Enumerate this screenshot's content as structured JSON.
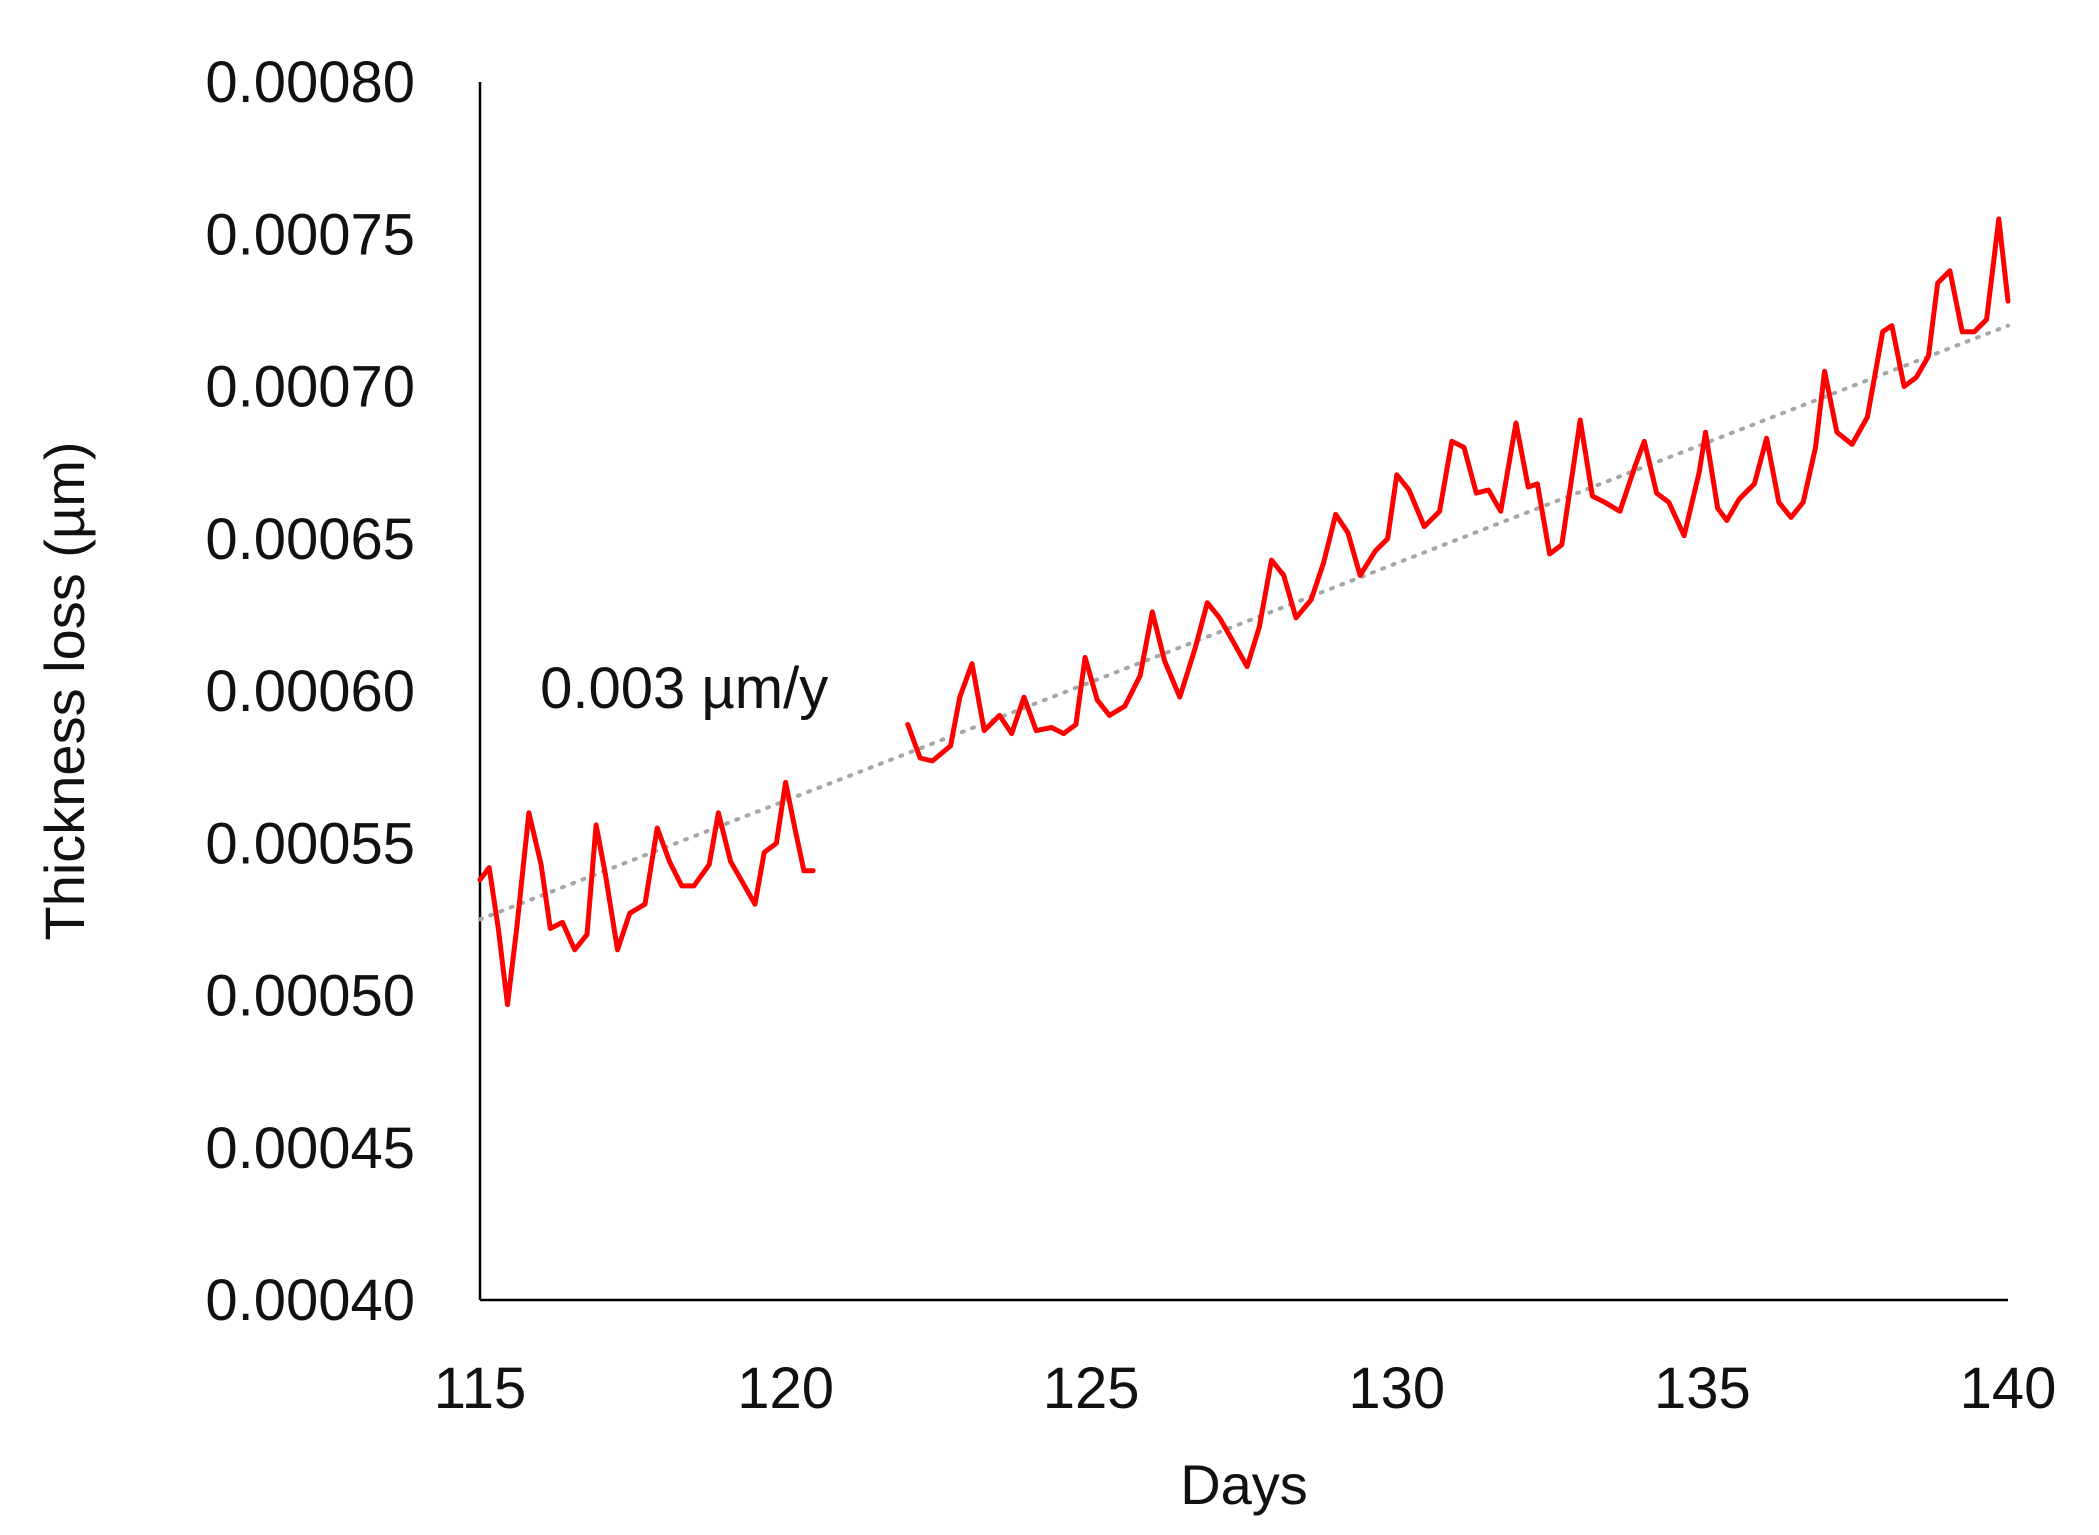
{
  "chart_data": {
    "type": "line",
    "title": "",
    "xlabel": "Days",
    "ylabel": "Thickness loss (µm)",
    "xlim": [
      115,
      140
    ],
    "ylim": [
      0.0004,
      0.0008
    ],
    "x_ticks": [
      "115",
      "120",
      "125",
      "130",
      "135",
      "140"
    ],
    "y_ticks": [
      "0.00040",
      "0.00045",
      "0.00050",
      "0.00055",
      "0.00060",
      "0.00065",
      "0.00070",
      "0.00075",
      "0.00080"
    ],
    "grid": false,
    "legend": "none",
    "annotation": {
      "text": "0.003 µm/y",
      "x": 116.0,
      "y": 0.000601
    },
    "series": [
      {
        "color": "#ff0000",
        "style": "solid",
        "segments": [
          [
            [
              115.0,
              0.000538
            ],
            [
              115.15,
              0.000542
            ],
            [
              115.3,
              0.000522
            ],
            [
              115.45,
              0.000497
            ],
            [
              115.6,
              0.000522
            ],
            [
              115.8,
              0.00056
            ],
            [
              116.0,
              0.000543
            ],
            [
              116.15,
              0.000522
            ],
            [
              116.35,
              0.000524
            ],
            [
              116.55,
              0.000515
            ],
            [
              116.75,
              0.00052
            ],
            [
              116.9,
              0.000556
            ],
            [
              117.05,
              0.00054
            ],
            [
              117.25,
              0.000515
            ],
            [
              117.45,
              0.000527
            ],
            [
              117.7,
              0.00053
            ],
            [
              117.9,
              0.000555
            ],
            [
              118.1,
              0.000544
            ],
            [
              118.3,
              0.000536
            ],
            [
              118.5,
              0.000536
            ],
            [
              118.75,
              0.000543
            ],
            [
              118.9,
              0.00056
            ],
            [
              119.1,
              0.000544
            ],
            [
              119.3,
              0.000537
            ],
            [
              119.5,
              0.00053
            ],
            [
              119.65,
              0.000547
            ],
            [
              119.85,
              0.00055
            ],
            [
              120.0,
              0.00057
            ],
            [
              120.15,
              0.000555
            ],
            [
              120.3,
              0.000541
            ],
            [
              120.45,
              0.000541
            ]
          ],
          [
            [
              122.0,
              0.000589
            ],
            [
              122.2,
              0.000578
            ],
            [
              122.4,
              0.000577
            ],
            [
              122.7,
              0.000582
            ],
            [
              122.85,
              0.000598
            ],
            [
              123.05,
              0.000609
            ],
            [
              123.25,
              0.000587
            ],
            [
              123.5,
              0.000592
            ],
            [
              123.7,
              0.000586
            ],
            [
              123.9,
              0.000598
            ],
            [
              124.1,
              0.000587
            ],
            [
              124.35,
              0.000588
            ],
            [
              124.55,
              0.000586
            ],
            [
              124.75,
              0.000589
            ],
            [
              124.9,
              0.000611
            ],
            [
              125.1,
              0.000597
            ],
            [
              125.3,
              0.000592
            ],
            [
              125.55,
              0.000595
            ],
            [
              125.8,
              0.000605
            ],
            [
              126.0,
              0.000626
            ],
            [
              126.2,
              0.00061
            ],
            [
              126.45,
              0.000598
            ],
            [
              126.7,
              0.000614
            ],
            [
              126.9,
              0.000629
            ],
            [
              127.1,
              0.000624
            ],
            [
              127.3,
              0.000617
            ],
            [
              127.55,
              0.000608
            ],
            [
              127.75,
              0.000621
            ],
            [
              127.95,
              0.000643
            ],
            [
              128.15,
              0.000638
            ],
            [
              128.35,
              0.000624
            ],
            [
              128.6,
              0.00063
            ],
            [
              128.8,
              0.000642
            ],
            [
              129.0,
              0.000658
            ],
            [
              129.2,
              0.000652
            ],
            [
              129.4,
              0.000638
            ],
            [
              129.65,
              0.000646
            ],
            [
              129.85,
              0.00065
            ],
            [
              130.0,
              0.000671
            ],
            [
              130.2,
              0.000666
            ],
            [
              130.45,
              0.000654
            ],
            [
              130.7,
              0.000659
            ],
            [
              130.9,
              0.000682
            ],
            [
              131.1,
              0.00068
            ],
            [
              131.3,
              0.000665
            ],
            [
              131.5,
              0.000666
            ],
            [
              131.7,
              0.000659
            ],
            [
              131.95,
              0.000688
            ],
            [
              132.15,
              0.000667
            ],
            [
              132.3,
              0.000668
            ],
            [
              132.5,
              0.000645
            ],
            [
              132.7,
              0.000648
            ],
            [
              132.9,
              0.000675
            ],
            [
              133.0,
              0.000689
            ],
            [
              133.2,
              0.000664
            ],
            [
              133.4,
              0.000662
            ],
            [
              133.65,
              0.000659
            ],
            [
              133.9,
              0.000674
            ],
            [
              134.05,
              0.000682
            ],
            [
              134.25,
              0.000665
            ],
            [
              134.45,
              0.000662
            ],
            [
              134.7,
              0.000651
            ],
            [
              134.95,
              0.000672
            ],
            [
              135.05,
              0.000685
            ],
            [
              135.25,
              0.00066
            ],
            [
              135.4,
              0.000656
            ],
            [
              135.6,
              0.000663
            ],
            [
              135.85,
              0.000668
            ],
            [
              136.05,
              0.000683
            ],
            [
              136.25,
              0.000662
            ],
            [
              136.45,
              0.000657
            ],
            [
              136.65,
              0.000662
            ],
            [
              136.85,
              0.00068
            ],
            [
              137.0,
              0.000705
            ],
            [
              137.2,
              0.000685
            ],
            [
              137.45,
              0.000681
            ],
            [
              137.7,
              0.00069
            ],
            [
              137.95,
              0.000718
            ],
            [
              138.1,
              0.00072
            ],
            [
              138.3,
              0.0007
            ],
            [
              138.5,
              0.000703
            ],
            [
              138.7,
              0.00071
            ],
            [
              138.85,
              0.000734
            ],
            [
              139.05,
              0.000738
            ],
            [
              139.25,
              0.000718
            ],
            [
              139.45,
              0.000718
            ],
            [
              139.65,
              0.000722
            ],
            [
              139.85,
              0.000755
            ],
            [
              140.0,
              0.000728
            ]
          ]
        ]
      },
      {
        "color": "#a6a6a6",
        "style": "dotted",
        "type": "trendline",
        "points": [
          [
            115.0,
            0.000525
          ],
          [
            140.0,
            0.00072
          ]
        ]
      }
    ]
  }
}
